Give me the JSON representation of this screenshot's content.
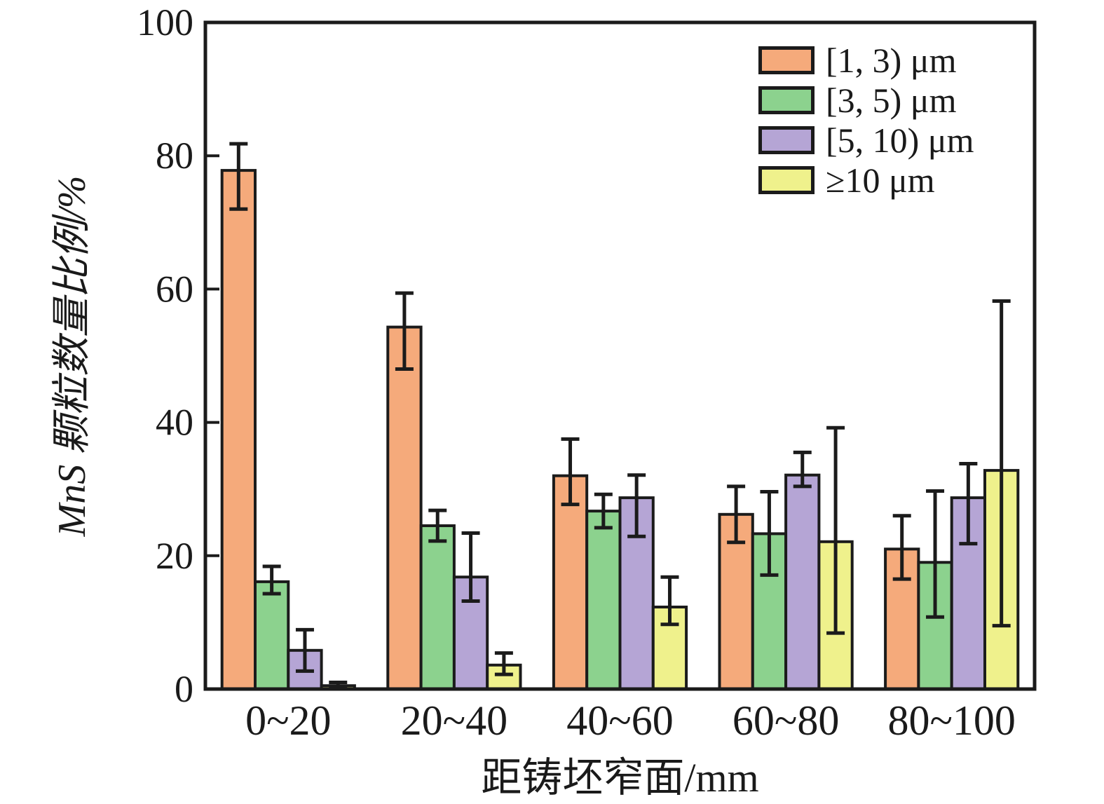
{
  "figure": {
    "background": "#FFFFFF",
    "text_color": "#1A1A1A",
    "edge_color": "#1B1B1B"
  },
  "chart_data": {
    "type": "bar",
    "title": "",
    "xlabel": "距铸坯窄面/mm",
    "ylabel": "MnS 颗粒数量比例/%",
    "categories": [
      "0~20",
      "20~40",
      "40~60",
      "60~80",
      "80~100"
    ],
    "y_ticks": [
      0,
      20,
      40,
      60,
      80,
      100
    ],
    "ylim": [
      0,
      100
    ],
    "grid": false,
    "legend_position": "top-right-inside",
    "error_bars": true,
    "series": [
      {
        "name": "[1, 3) μm",
        "color": "#F5AA7B",
        "values": [
          77.8,
          54.3,
          32.0,
          26.2,
          21.0
        ],
        "err_low": [
          5.8,
          6.3,
          4.3,
          4.2,
          4.5
        ],
        "err_high": [
          4.0,
          5.1,
          5.5,
          4.2,
          5.0
        ]
      },
      {
        "name": "[3, 5) μm",
        "color": "#8CD28E",
        "values": [
          16.1,
          24.5,
          26.7,
          23.3,
          19.0
        ],
        "err_low": [
          1.8,
          2.3,
          2.5,
          6.2,
          8.2
        ],
        "err_high": [
          2.3,
          2.3,
          2.5,
          6.3,
          10.7
        ]
      },
      {
        "name": "[5, 10) μm",
        "color": "#B5A5D5",
        "values": [
          5.8,
          16.8,
          28.7,
          32.1,
          28.7
        ],
        "err_low": [
          3.1,
          3.6,
          5.8,
          1.7,
          6.9
        ],
        "err_high": [
          3.1,
          6.6,
          3.4,
          3.4,
          5.1
        ]
      },
      {
        "name": "≥10 μm",
        "color": "#EFF18C",
        "values": [
          0.5,
          3.6,
          12.3,
          22.1,
          32.8
        ],
        "err_low": [
          0.4,
          1.4,
          2.6,
          13.7,
          23.3
        ],
        "err_high": [
          0.5,
          1.8,
          4.5,
          17.1,
          25.4
        ]
      }
    ]
  }
}
